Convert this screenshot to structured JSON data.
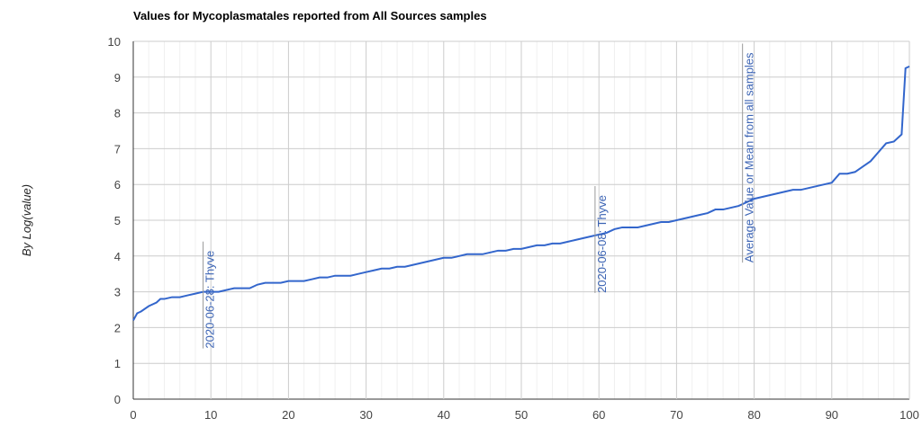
{
  "chart_data": {
    "type": "line",
    "title": "Values for Mycoplasmatales reported from All Sources samples",
    "y_label": "By Log(value)",
    "x": [
      0,
      0.5,
      1,
      2,
      3,
      3.5,
      4,
      5,
      6,
      7,
      8,
      9,
      10,
      11,
      12,
      13,
      14,
      15,
      16,
      17,
      18,
      19,
      20,
      21,
      22,
      23,
      24,
      25,
      26,
      27,
      28,
      29,
      30,
      31,
      32,
      33,
      34,
      35,
      36,
      37,
      38,
      39,
      40,
      41,
      42,
      43,
      44,
      45,
      46,
      47,
      48,
      49,
      50,
      51,
      52,
      53,
      54,
      55,
      56,
      57,
      58,
      59,
      60,
      61,
      62,
      63,
      64,
      65,
      66,
      67,
      68,
      69,
      70,
      71,
      72,
      73,
      74,
      75,
      76,
      77,
      78,
      79,
      80,
      81,
      82,
      83,
      84,
      85,
      86,
      87,
      88,
      89,
      90,
      91,
      92,
      93,
      94,
      95,
      96,
      97,
      98,
      99,
      99.5,
      100
    ],
    "series": [
      {
        "name": "Values",
        "color": "#3366cc",
        "values": [
          2.2,
          2.4,
          2.45,
          2.6,
          2.7,
          2.8,
          2.8,
          2.85,
          2.85,
          2.9,
          2.95,
          3.0,
          3.0,
          3.0,
          3.05,
          3.1,
          3.1,
          3.1,
          3.2,
          3.25,
          3.25,
          3.25,
          3.3,
          3.3,
          3.3,
          3.35,
          3.4,
          3.4,
          3.45,
          3.45,
          3.45,
          3.5,
          3.55,
          3.6,
          3.65,
          3.65,
          3.7,
          3.7,
          3.75,
          3.8,
          3.85,
          3.9,
          3.95,
          3.95,
          4.0,
          4.05,
          4.05,
          4.05,
          4.1,
          4.15,
          4.15,
          4.2,
          4.2,
          4.25,
          4.3,
          4.3,
          4.35,
          4.35,
          4.4,
          4.45,
          4.5,
          4.55,
          4.6,
          4.65,
          4.75,
          4.8,
          4.8,
          4.8,
          4.85,
          4.9,
          4.95,
          4.95,
          5.0,
          5.05,
          5.1,
          5.15,
          5.2,
          5.3,
          5.3,
          5.35,
          5.4,
          5.5,
          5.6,
          5.65,
          5.7,
          5.75,
          5.8,
          5.85,
          5.85,
          5.9,
          5.95,
          6.0,
          6.05,
          6.3,
          6.3,
          6.35,
          6.5,
          6.65,
          6.9,
          7.15,
          7.2,
          7.4,
          9.25,
          9.3
        ]
      }
    ],
    "annotations": [
      {
        "x": 9,
        "label": "2020-06-28: Thyve"
      },
      {
        "x": 59.5,
        "label": "2020-06-08: Thyve"
      },
      {
        "x": 78.5,
        "label": "Average Value or Mean from all samples"
      }
    ],
    "xlim": [
      0,
      100
    ],
    "xticks": [
      0,
      10,
      20,
      30,
      40,
      50,
      60,
      70,
      80,
      90,
      100
    ],
    "ylim": [
      0,
      10
    ],
    "yticks": [
      0,
      1,
      2,
      3,
      4,
      5,
      6,
      7,
      8,
      9,
      10
    ],
    "grid": true
  }
}
